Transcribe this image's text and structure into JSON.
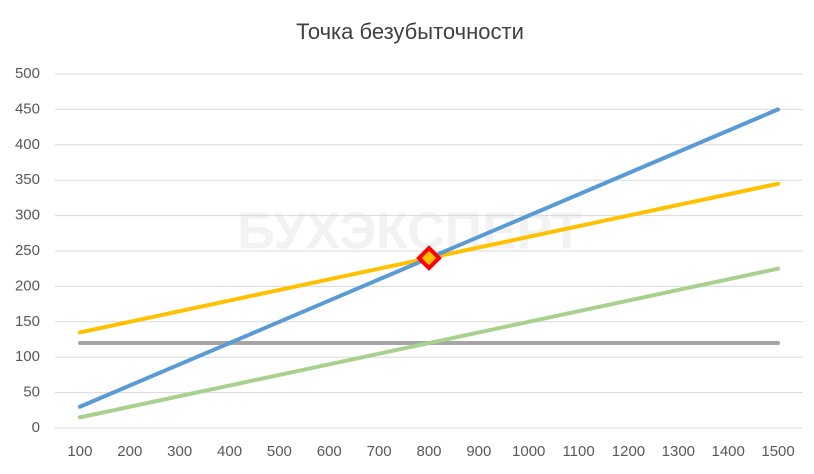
{
  "chart_data": {
    "type": "line",
    "title": "Точка безубыточности",
    "watermark": "БУХЭКСПЕРТ",
    "categories": [
      "100",
      "200",
      "300",
      "400",
      "500",
      "600",
      "700",
      "800",
      "900",
      "1000",
      "1100",
      "1200",
      "1300",
      "1400",
      "1500"
    ],
    "series": [
      {
        "color": "#a5a5a5",
        "values": [
          120,
          120,
          120,
          120,
          120,
          120,
          120,
          120,
          120,
          120,
          120,
          120,
          120,
          120,
          120
        ]
      },
      {
        "color": "#a9d18e",
        "values": [
          15,
          30,
          45,
          60,
          75,
          90,
          105,
          120,
          135,
          150,
          165,
          180,
          195,
          210,
          225
        ]
      },
      {
        "color": "#ffc000",
        "values": [
          135,
          150,
          165,
          180,
          195,
          210,
          225,
          240,
          255,
          270,
          285,
          300,
          315,
          330,
          345
        ]
      },
      {
        "color": "#5b9bd5",
        "values": [
          30,
          60,
          90,
          120,
          150,
          180,
          210,
          240,
          270,
          300,
          330,
          360,
          390,
          420,
          450
        ]
      },
      {
        "color": "#ffc000",
        "marker": "diamond",
        "values": [
          null,
          null,
          null,
          null,
          null,
          null,
          null,
          240,
          null,
          null,
          null,
          null,
          null,
          null,
          null
        ]
      }
    ],
    "ylim": [
      0,
      500
    ],
    "yticks": [
      0,
      50,
      100,
      150,
      200,
      250,
      300,
      350,
      400,
      450,
      500
    ],
    "grid": true
  }
}
